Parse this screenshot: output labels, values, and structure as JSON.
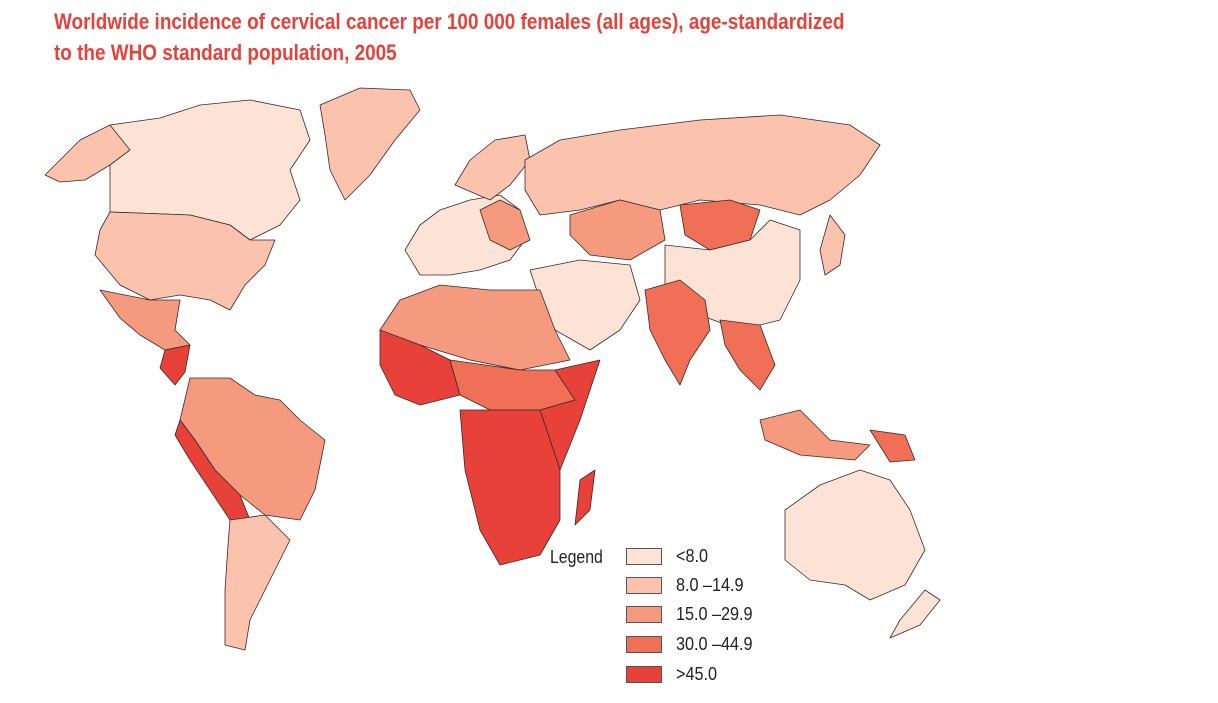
{
  "title": "Worldwide incidence of cervical cancer per 100 000 females (all ages), age-standardized to the WHO standard population, 2005",
  "legend": {
    "label": "Legend",
    "classes": [
      {
        "label": "<8.0",
        "color": "#fde3d6"
      },
      {
        "label": "8.0 –14.9",
        "color": "#fbc2ad"
      },
      {
        "label": "15.0 –29.9",
        "color": "#f59a7e"
      },
      {
        "label": "30.0 –44.9",
        "color": "#ef7056"
      },
      {
        "label": ">45.0",
        "color": "#e8413a"
      }
    ]
  },
  "map": {
    "projection": "world",
    "outline_color": "#3a2a26"
  }
}
